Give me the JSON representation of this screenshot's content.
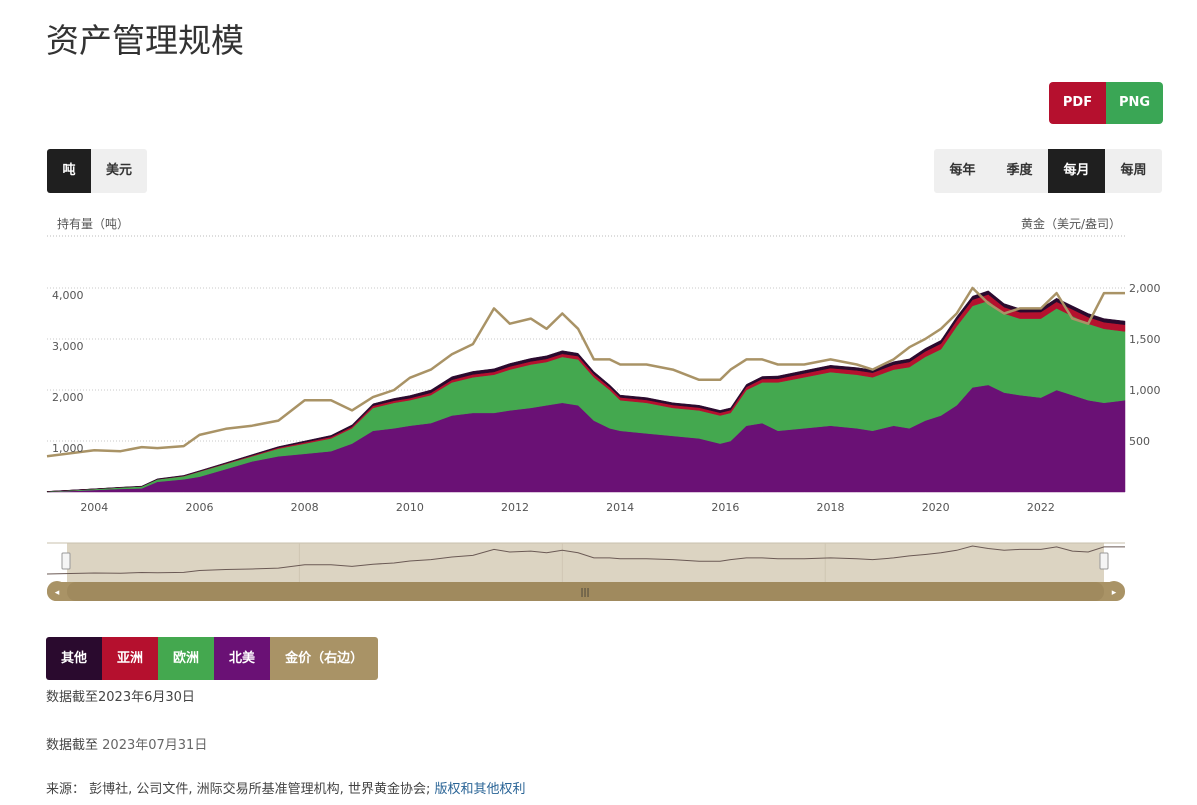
{
  "page": {
    "title": "资产管理规模"
  },
  "export": {
    "pdf": "PDF",
    "png": "PNG",
    "pdf_color": "#b5102e",
    "png_color": "#3aa655"
  },
  "unit_toggle": {
    "items": [
      "吨",
      "美元"
    ],
    "active": 0
  },
  "period_toggle": {
    "items": [
      "每年",
      "季度",
      "每月",
      "每周"
    ],
    "active": 2
  },
  "legend": {
    "items": [
      {
        "label": "其他",
        "color": "#2a0a2e"
      },
      {
        "label": "亚洲",
        "color": "#b5102e"
      },
      {
        "label": "欧洲",
        "color": "#44a84f"
      },
      {
        "label": "北美",
        "color": "#6a1175"
      },
      {
        "label": "金价（右边）",
        "color": "#a99366"
      }
    ]
  },
  "notes": {
    "asof1": "数据截至2023年6月30日",
    "asof2_label": "数据截至",
    "asof2_value": "2023年07月31日",
    "source_label": "来源：",
    "source_text": "彭博社, 公司文件, 洲际交易所基准管理机构, 世界黄金协会;",
    "source_link": "版权和其他权利"
  },
  "chart_data": {
    "type": "area",
    "title": "",
    "ylabel": "持有量（吨）",
    "y2label": "黄金（美元/盎司）",
    "xlim": [
      2003.1,
      2023.6
    ],
    "ylim": [
      0,
      4000
    ],
    "y2lim": [
      0,
      2000
    ],
    "x_ticks": [
      "2004",
      "2006",
      "2008",
      "2010",
      "2012",
      "2014",
      "2016",
      "2018",
      "2020",
      "2022"
    ],
    "y_ticks": [
      "1,000",
      "2,000",
      "3,000",
      "4,000"
    ],
    "y2_ticks": [
      "500",
      "1,000",
      "1,500",
      "2,000"
    ],
    "grid": true,
    "stack_order": [
      "北美",
      "欧洲",
      "亚洲",
      "其他"
    ],
    "x": [
      2003.1,
      2004.0,
      2004.5,
      2004.9,
      2005.2,
      2005.7,
      2006.0,
      2006.5,
      2007.0,
      2007.5,
      2008.0,
      2008.5,
      2008.9,
      2009.3,
      2009.7,
      2010.0,
      2010.4,
      2010.8,
      2011.2,
      2011.6,
      2011.9,
      2012.3,
      2012.6,
      2012.9,
      2013.2,
      2013.5,
      2013.8,
      2014.0,
      2014.5,
      2015.0,
      2015.5,
      2015.9,
      2016.1,
      2016.4,
      2016.7,
      2017.0,
      2017.5,
      2018.0,
      2018.5,
      2018.8,
      2019.2,
      2019.5,
      2019.8,
      2020.1,
      2020.4,
      2020.7,
      2021.0,
      2021.3,
      2021.6,
      2022.0,
      2022.3,
      2022.6,
      2022.9,
      2023.2,
      2023.6
    ],
    "series": [
      {
        "name": "北美",
        "values": [
          0,
          40,
          60,
          70,
          200,
          250,
          300,
          450,
          600,
          700,
          750,
          800,
          950,
          1200,
          1250,
          1300,
          1350,
          1500,
          1550,
          1550,
          1600,
          1650,
          1700,
          1750,
          1700,
          1400,
          1250,
          1200,
          1150,
          1100,
          1050,
          950,
          1000,
          1300,
          1350,
          1200,
          1250,
          1300,
          1250,
          1200,
          1300,
          1250,
          1400,
          1500,
          1700,
          2050,
          2100,
          1950,
          1900,
          1850,
          2000,
          1900,
          1800,
          1750,
          1800
        ]
      },
      {
        "name": "欧洲",
        "values": [
          10,
          20,
          30,
          40,
          50,
          60,
          100,
          100,
          100,
          150,
          200,
          250,
          300,
          450,
          500,
          500,
          550,
          650,
          700,
          750,
          800,
          850,
          850,
          900,
          900,
          850,
          750,
          600,
          600,
          550,
          550,
          550,
          550,
          700,
          800,
          950,
          1000,
          1050,
          1050,
          1050,
          1100,
          1200,
          1250,
          1300,
          1550,
          1600,
          1650,
          1550,
          1500,
          1550,
          1600,
          1550,
          1500,
          1450,
          1350
        ]
      },
      {
        "name": "亚洲",
        "values": [
          0,
          0,
          0,
          0,
          0,
          5,
          5,
          10,
          15,
          20,
          25,
          30,
          30,
          40,
          40,
          40,
          45,
          50,
          55,
          55,
          60,
          60,
          60,
          60,
          65,
          60,
          55,
          55,
          55,
          55,
          55,
          55,
          55,
          60,
          65,
          70,
          75,
          80,
          85,
          90,
          95,
          100,
          105,
          110,
          115,
          120,
          125,
          125,
          125,
          130,
          130,
          130,
          130,
          130,
          130
        ]
      },
      {
        "name": "其他",
        "values": [
          2,
          3,
          4,
          5,
          8,
          10,
          12,
          15,
          18,
          20,
          25,
          30,
          35,
          40,
          45,
          50,
          55,
          60,
          60,
          60,
          60,
          60,
          60,
          60,
          55,
          50,
          45,
          45,
          45,
          45,
          45,
          45,
          45,
          50,
          50,
          55,
          55,
          55,
          55,
          55,
          60,
          60,
          60,
          65,
          70,
          70,
          70,
          70,
          70,
          70,
          70,
          70,
          70,
          70,
          70
        ]
      },
      {
        "name": "金价（右边）",
        "axis": "right",
        "values": [
          350,
          410,
          400,
          440,
          430,
          450,
          560,
          620,
          650,
          700,
          900,
          900,
          800,
          930,
          1000,
          1120,
          1200,
          1350,
          1450,
          1800,
          1650,
          1700,
          1600,
          1750,
          1600,
          1300,
          1300,
          1250,
          1250,
          1200,
          1100,
          1100,
          1200,
          1300,
          1300,
          1250,
          1250,
          1300,
          1250,
          1200,
          1300,
          1420,
          1500,
          1600,
          1750,
          2000,
          1850,
          1750,
          1800,
          1800,
          1950,
          1700,
          1650,
          1950,
          1950
        ]
      }
    ]
  }
}
